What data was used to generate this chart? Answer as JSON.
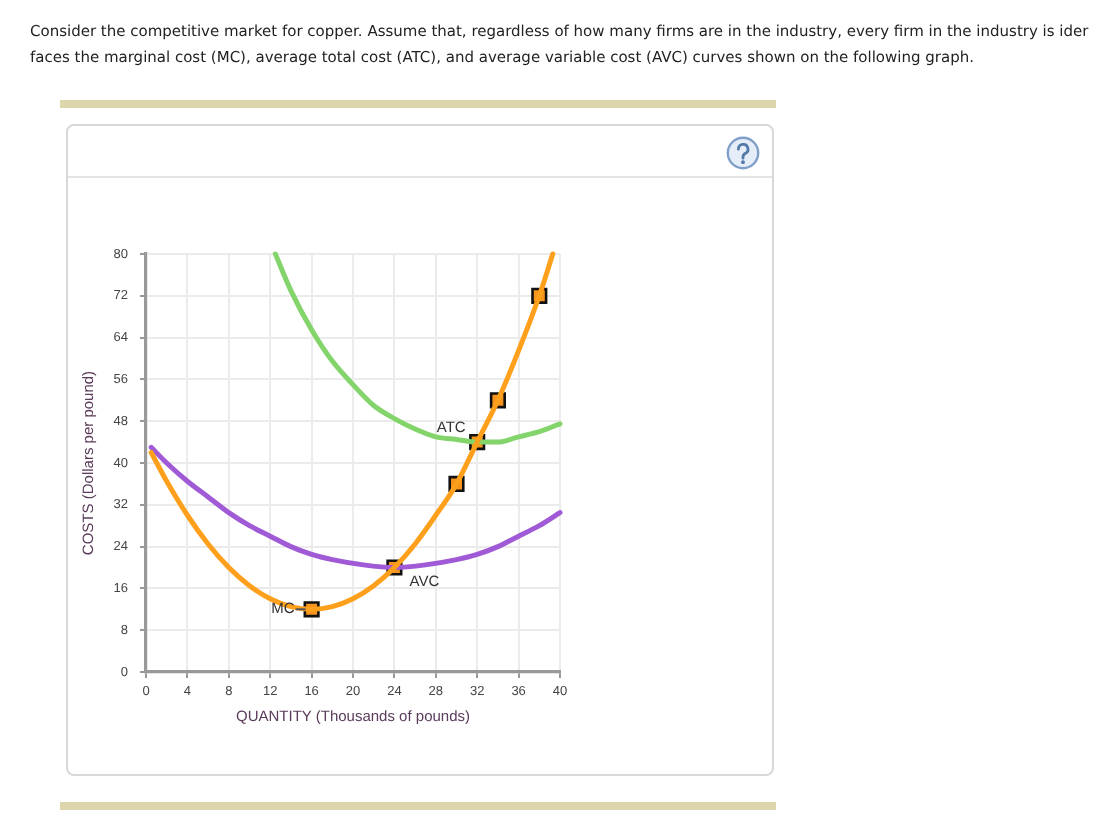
{
  "chart_data": {
    "type": "line",
    "annotations": [
      "Consider the competitive market for copper. Assume that, regardless of how many firms are in the industry, every firm in the industry is ider",
      "faces the marginal cost (MC), average total cost (ATC), and average variable cost (AVC) curves shown on the following graph."
    ],
    "xlabel": "QUANTITY (Thousands of pounds)",
    "ylabel": "COSTS (Dollars per pound)",
    "xlim": [
      0,
      40
    ],
    "ylim": [
      0,
      80
    ],
    "xticks": [
      0,
      4,
      8,
      12,
      16,
      20,
      24,
      28,
      32,
      36,
      40
    ],
    "yticks": [
      0,
      8,
      16,
      24,
      32,
      40,
      48,
      56,
      64,
      72,
      80
    ],
    "grid": true,
    "series": [
      {
        "name": "MC",
        "color": "#ffa01c",
        "x": [
          0.5,
          2,
          4,
          6,
          8,
          10,
          12,
          14,
          16,
          18,
          20,
          22,
          24,
          26,
          28,
          30,
          32,
          34,
          36,
          38,
          39.3
        ],
        "values": [
          42,
          36.5,
          30,
          24.5,
          20,
          16.5,
          14,
          12.5,
          12,
          12.5,
          14,
          16.5,
          20,
          24.5,
          30,
          36,
          44,
          52,
          61.5,
          72,
          80
        ]
      },
      {
        "name": "ATC",
        "color": "#84d46c",
        "x": [
          12.5,
          14,
          16,
          18,
          20,
          22,
          24,
          26,
          28,
          30,
          32,
          34,
          36,
          38,
          40
        ],
        "values": [
          80,
          73,
          65.5,
          59.5,
          55,
          51,
          48.5,
          46.5,
          45,
          44.5,
          44,
          44,
          45,
          46,
          47.5
        ]
      },
      {
        "name": "AVC",
        "color": "#a05ad6",
        "x": [
          0.5,
          2,
          4,
          6,
          8,
          10,
          12,
          14,
          16,
          18,
          21,
          24,
          27,
          30,
          32,
          34,
          36,
          38,
          40
        ],
        "values": [
          43,
          40,
          36.5,
          33.5,
          30.5,
          28,
          26,
          24,
          22.5,
          21.5,
          20.5,
          20,
          20.5,
          21.5,
          22.5,
          24,
          26,
          28,
          30.5
        ]
      },
      {
        "type": "scatter",
        "marker": "square",
        "color": "#f7941d",
        "x": [
          16,
          24,
          30,
          32,
          34,
          38
        ],
        "values": [
          12,
          20,
          36,
          44,
          52,
          72
        ]
      }
    ]
  }
}
